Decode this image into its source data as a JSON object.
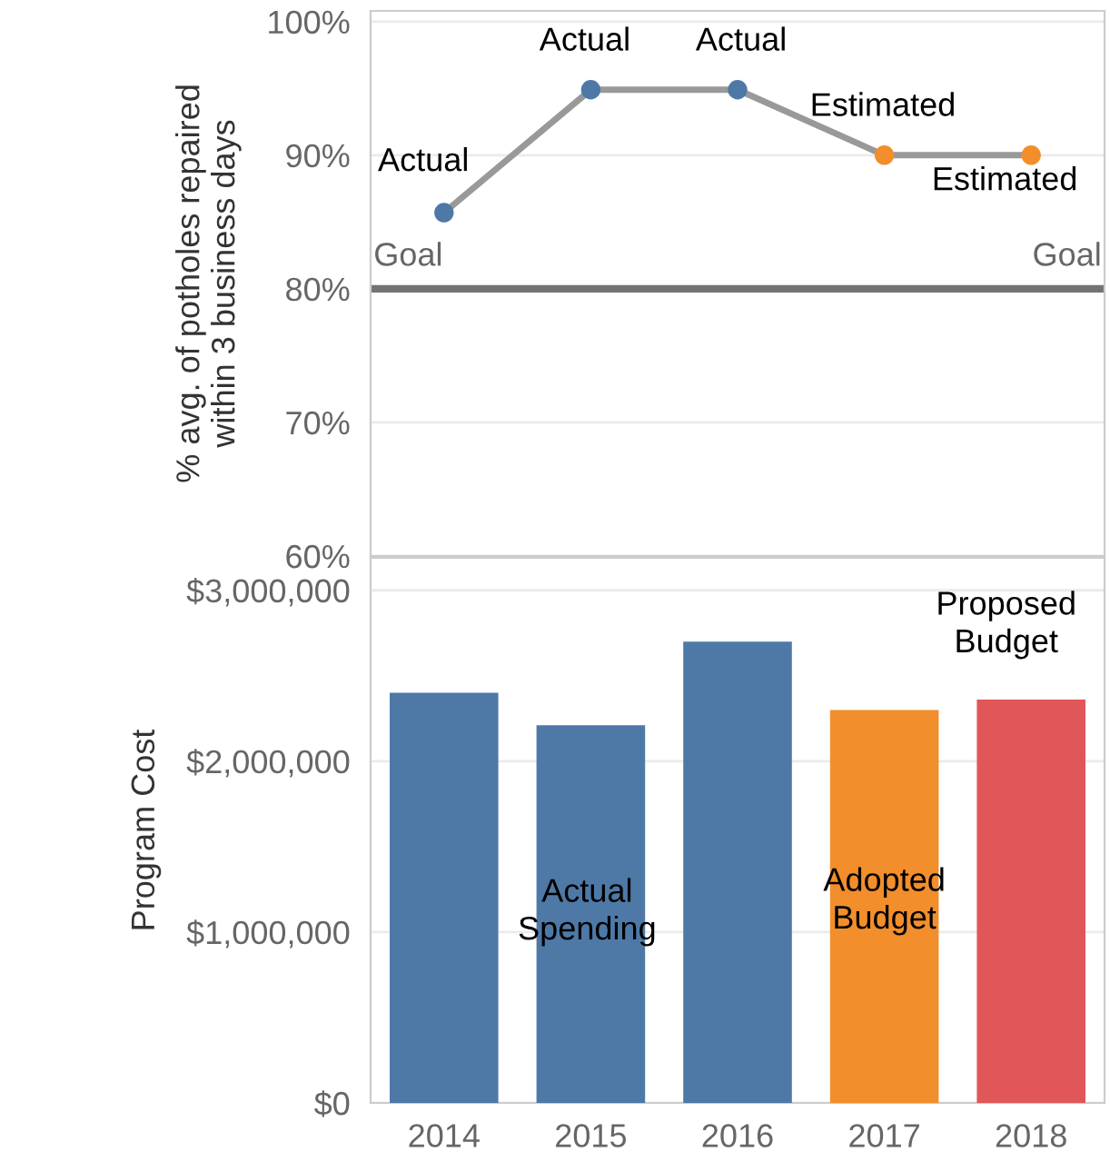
{
  "chart_data": [
    {
      "type": "line",
      "ylabel": "% avg. of potholes repaired\nwithin 3 business days",
      "categories": [
        "2014",
        "2015",
        "2016",
        "2017",
        "2018"
      ],
      "series": [
        {
          "color": "#999999",
          "colors": [
            "#4e79a7",
            "#4e79a7",
            "#4e79a7",
            "#f28e2b",
            "#f28e2b"
          ],
          "values": [
            85.7,
            94.9,
            94.9,
            90,
            90
          ]
        }
      ],
      "marker": "circle",
      "ylim": [
        60,
        100.8
      ],
      "yticks": [
        {
          "value": 60,
          "label": "60%"
        },
        {
          "value": 70,
          "label": "70%"
        },
        {
          "value": 80,
          "label": "80%"
        },
        {
          "value": 90,
          "label": "90%"
        },
        {
          "value": 100,
          "label": "100%"
        }
      ],
      "grid": "y",
      "tick_labels": "y",
      "ref_lines": [
        {
          "axis": "y",
          "value": 80,
          "label": "Goal",
          "color": "#737373"
        }
      ],
      "annotations": [
        "Actual",
        "Actual",
        "Actual",
        "Estimated",
        "Estimated"
      ]
    },
    {
      "type": "bar",
      "ylabel": "Program Cost",
      "categories": [
        "2014",
        "2015",
        "2016",
        "2017",
        "2018"
      ],
      "values": [
        2400000,
        2210000,
        2700000,
        2300000,
        2360000
      ],
      "colors": [
        "#4e79a7",
        "#4e79a7",
        "#4e79a7",
        "#f28e2b",
        "#e15759"
      ],
      "ylim": [
        0,
        3190000
      ],
      "yticks": [
        {
          "value": 0,
          "label": "$0"
        },
        {
          "value": 1000000,
          "label": "$1,000,000"
        },
        {
          "value": 2000000,
          "label": "$2,000,000"
        },
        {
          "value": 3000000,
          "label": "$3,000,000"
        }
      ],
      "grid": "y",
      "annotations": [
        "Actual\nSpending",
        "Adopted\nBudget",
        "Proposed\nBudget"
      ]
    }
  ]
}
